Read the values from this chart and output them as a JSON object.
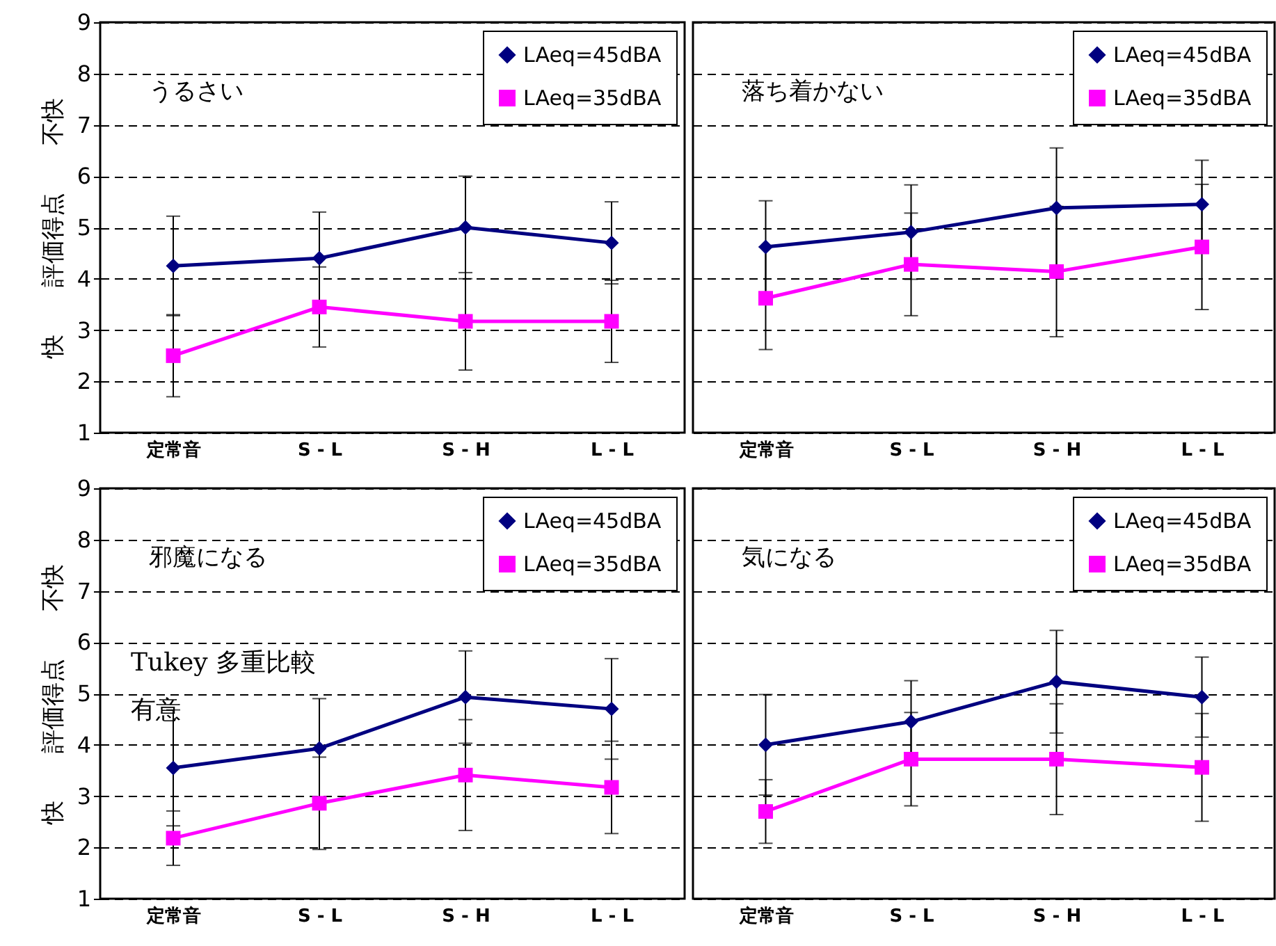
{
  "chart_data": [
    {
      "type": "line",
      "categories": [
        "定常音",
        "S - L",
        "S - H",
        "L - L"
      ],
      "ylabel": "快　　評価得点　　不快",
      "ylim": [
        1,
        9
      ],
      "yticks": [
        1,
        2,
        3,
        4,
        5,
        6,
        7,
        8,
        9
      ],
      "grid": "y",
      "legend": "top right",
      "line_style": "solid",
      "annotations": [
        "うるさい"
      ],
      "series": [
        {
          "name": "LAeq=45dBA",
          "color": "#000080",
          "marker": "diamond",
          "values": [
            4.25,
            4.4,
            5.0,
            4.7
          ],
          "errors": [
            0.97,
            0.9,
            1.0,
            0.8
          ]
        },
        {
          "name": "LAeq=35dBA",
          "color": "#ff00ff",
          "marker": "square",
          "values": [
            2.5,
            3.45,
            3.17,
            3.17
          ],
          "errors": [
            0.8,
            0.78,
            0.95,
            0.8
          ]
        }
      ]
    },
    {
      "type": "line",
      "categories": [
        "定常音",
        "S - L",
        "S - H",
        "L - L"
      ],
      "ylim": [
        1,
        9
      ],
      "yticks": [
        1,
        2,
        3,
        4,
        5,
        6,
        7,
        8,
        9
      ],
      "grid": "y",
      "legend": "top right",
      "line_style": "solid",
      "tick_labels": "x",
      "annotations": [
        "落ち着かない"
      ],
      "series": [
        {
          "name": "LAeq=45dBA",
          "color": "#000080",
          "marker": "diamond",
          "values": [
            4.62,
            4.91,
            5.38,
            5.45
          ],
          "errors": [
            0.9,
            0.92,
            1.17,
            0.86
          ]
        },
        {
          "name": "LAeq=35dBA",
          "color": "#ff00ff",
          "marker": "square",
          "values": [
            3.62,
            4.28,
            4.14,
            4.62
          ],
          "errors": [
            1.0,
            1.0,
            1.27,
            1.22
          ]
        }
      ]
    },
    {
      "type": "line",
      "categories": [
        "定常音",
        "S - L",
        "S - H",
        "L - L"
      ],
      "ylabel": "快　　評価得点　　不快",
      "ylim": [
        1,
        9
      ],
      "yticks": [
        1,
        2,
        3,
        4,
        5,
        6,
        7,
        8,
        9
      ],
      "grid": "y",
      "legend": "top right",
      "line_style": "solid",
      "annotations": [
        "邪魔になる",
        "Tukey 多重比較",
        "有意"
      ],
      "series": [
        {
          "name": "LAeq=45dBA",
          "color": "#000080",
          "marker": "diamond",
          "values": [
            3.55,
            3.93,
            4.93,
            4.7
          ],
          "errors": [
            1.13,
            0.97,
            0.9,
            0.98
          ]
        },
        {
          "name": "LAeq=35dBA",
          "color": "#ff00ff",
          "marker": "square",
          "values": [
            2.18,
            2.86,
            3.41,
            3.17
          ],
          "errors": [
            0.53,
            0.9,
            1.08,
            0.9
          ]
        }
      ]
    },
    {
      "type": "line",
      "categories": [
        "定常音",
        "S - L",
        "S - H",
        "L - L"
      ],
      "ylim": [
        1,
        9
      ],
      "yticks": [
        1,
        2,
        3,
        4,
        5,
        6,
        7,
        8,
        9
      ],
      "grid": "y",
      "legend": "top right",
      "line_style": "solid",
      "tick_labels": "x",
      "annotations": [
        "気になる"
      ],
      "series": [
        {
          "name": "LAeq=45dBA",
          "color": "#000080",
          "marker": "diamond",
          "values": [
            4.0,
            4.45,
            5.23,
            4.93
          ],
          "errors": [
            0.98,
            0.8,
            1.0,
            0.78
          ]
        },
        {
          "name": "LAeq=35dBA",
          "color": "#ff00ff",
          "marker": "square",
          "values": [
            2.7,
            3.72,
            3.72,
            3.56
          ],
          "errors": [
            0.62,
            0.91,
            1.08,
            1.05
          ]
        }
      ]
    }
  ]
}
